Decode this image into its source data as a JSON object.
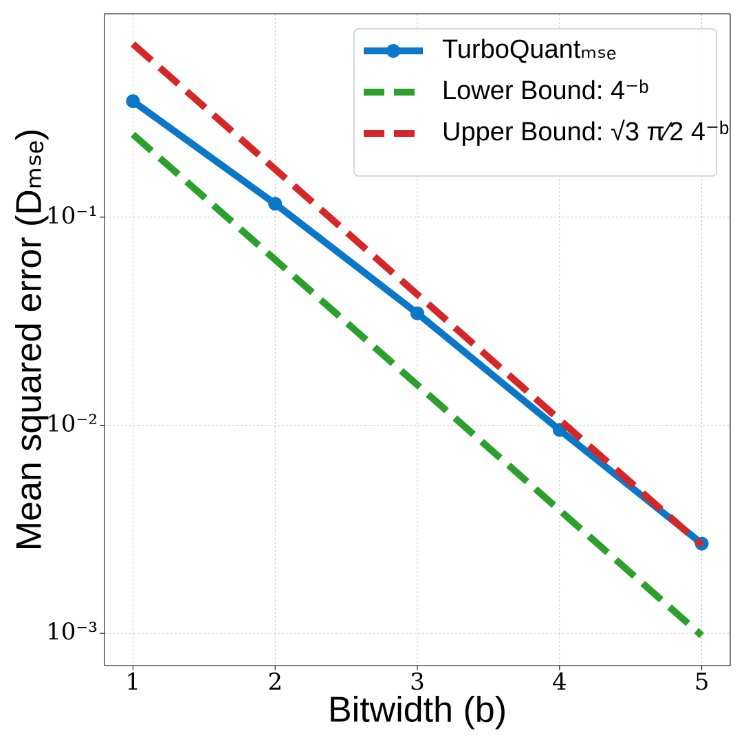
{
  "chart_data": {
    "type": "line",
    "x_label": "Bitwidth (b)",
    "y_label": "Mean squared error (Dₘₛₑ)",
    "x": [
      1,
      2,
      3,
      4,
      5
    ],
    "xlim": [
      0.8,
      5.2
    ],
    "xticks": [
      1,
      2,
      3,
      4,
      5
    ],
    "ylim": [
      0.0007,
      0.95
    ],
    "log_y": true,
    "yticks": [
      {
        "value": 0.1,
        "label": "10⁻¹"
      },
      {
        "value": 0.01,
        "label": "10⁻²"
      },
      {
        "value": 0.001,
        "label": "10⁻³"
      }
    ],
    "grid": true,
    "legend": "upper right",
    "series": [
      {
        "name": "TurboQuantₘₛₑ",
        "color": "#0b77c9",
        "style": "solid",
        "marker": true,
        "values": [
          0.361,
          0.116,
          0.0345,
          0.0095,
          0.0027
        ]
      },
      {
        "name": "Lower Bound: 4⁻ᵇ",
        "color": "#2ca02c",
        "style": "dashed",
        "marker": false,
        "values": [
          0.25,
          0.0625,
          0.015625,
          0.00390625,
          0.0009765625
        ]
      },
      {
        "name": "Upper Bound: √3 π⁄2 4⁻ᵇ",
        "color": "#d62728",
        "style": "dashed",
        "marker": false,
        "values": [
          0.68,
          0.17,
          0.0425,
          0.01063,
          0.002657
        ]
      }
    ]
  }
}
